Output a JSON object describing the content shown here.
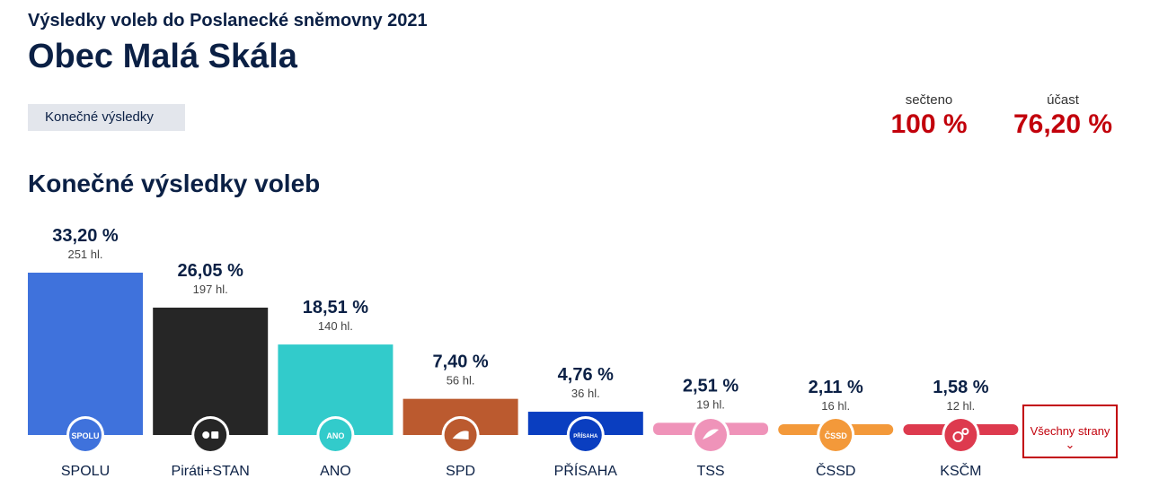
{
  "header": {
    "supertitle": "Výsledky voleb do Poslanecké sněmovny 2021",
    "title": "Obec Malá Skála",
    "badge": "Konečné výsledky"
  },
  "stats": {
    "counted_label": "sečteno",
    "counted_value": "100 %",
    "turnout_label": "účast",
    "turnout_value": "76,20 %"
  },
  "section_title": "Konečné výsledky voleb",
  "more_button": {
    "label": "Všechny strany",
    "icon": "chevron-down-icon"
  },
  "colors": {
    "accent": "#c2000b",
    "title": "#0b2045"
  },
  "chart_data": {
    "type": "bar",
    "ylim": [
      0,
      33.2
    ],
    "categories": [
      "SPOLU",
      "Piráti+STAN",
      "ANO",
      "SPD",
      "PŘÍSAHA",
      "TSS",
      "ČSSD",
      "KSČM"
    ],
    "values": [
      33.2,
      26.05,
      18.51,
      7.4,
      4.76,
      2.51,
      2.11,
      1.58
    ],
    "value_labels": [
      "33,20 %",
      "26,05 %",
      "18,51 %",
      "7,40 %",
      "4,76 %",
      "2,51 %",
      "2,11 %",
      "1,58 %"
    ],
    "votes": [
      "251 hl.",
      "197 hl.",
      "140 hl.",
      "56 hl.",
      "36 hl.",
      "19 hl.",
      "16 hl.",
      "12 hl."
    ],
    "colors": [
      "#3f72dc",
      "#262626",
      "#32cbcb",
      "#bb5a2f",
      "#0a3ec0",
      "#ef93b9",
      "#f3993a",
      "#dd3a4e"
    ],
    "logo_text": [
      "SPOLU",
      "",
      "ANO",
      "",
      "PŘÍSAHA",
      "",
      "ČSSD",
      ""
    ],
    "logo_icons": [
      "spolu-logo-icon",
      "pirati-stan-logo-icon",
      "ano-logo-icon",
      "spd-logo-icon",
      "prisaha-logo-icon",
      "tss-logo-icon",
      "cssd-logo-icon",
      "kscm-logo-icon"
    ]
  }
}
